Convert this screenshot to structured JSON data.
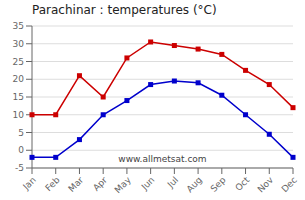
{
  "chart_data": {
    "type": "line",
    "title": "Parachinar : temperatures (°C)",
    "categories": [
      "Jan",
      "Feb",
      "Mar",
      "Apr",
      "May",
      "Jun",
      "Jul",
      "Aug",
      "Sep",
      "Oct",
      "Nov",
      "Dec"
    ],
    "series": [
      {
        "color": "#cc0000",
        "marker": "square",
        "values": [
          10,
          10,
          21,
          15,
          26,
          30.5,
          29.5,
          28.5,
          27,
          22.5,
          18.5,
          12
        ]
      },
      {
        "color": "#0000cc",
        "marker": "square",
        "values": [
          -2,
          -2,
          3,
          10,
          14,
          18.5,
          19.5,
          19,
          15.5,
          10,
          4.5,
          -2
        ]
      }
    ],
    "ylim": [
      -5,
      35
    ],
    "yticks": [
      -5,
      0,
      5,
      10,
      15,
      20,
      25,
      30,
      35
    ],
    "grid": true,
    "annotations": [
      "www.allmetsat.com"
    ]
  }
}
